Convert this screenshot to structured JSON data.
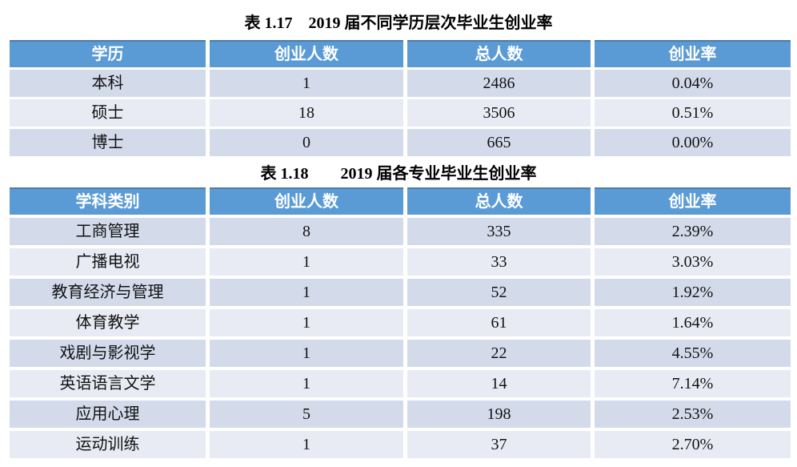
{
  "page": {
    "background_color": "#FFFFFF",
    "text_color": "#111111"
  },
  "colors": {
    "header_bg": "#5B9BD5",
    "header_text": "#FFFFFF",
    "row_band_dark": "#D3DBEB",
    "row_band_light": "#E9EBF4"
  },
  "table1": {
    "title": "表 1.17　2019 届不同学历层次毕业生创业率",
    "headers": [
      "学历",
      "创业人数",
      "总人数",
      "创业率"
    ],
    "rows": [
      [
        "本科",
        "1",
        "2486",
        "0.04%"
      ],
      [
        "硕士",
        "18",
        "3506",
        "0.51%"
      ],
      [
        "博士",
        "0",
        "665",
        "0.00%"
      ]
    ]
  },
  "table2": {
    "title": "表 1.18　　2019 届各专业毕业生创业率",
    "headers": [
      "学科类别",
      "创业人数",
      "总人数",
      "创业率"
    ],
    "rows": [
      [
        "工商管理",
        "8",
        "335",
        "2.39%"
      ],
      [
        "广播电视",
        "1",
        "33",
        "3.03%"
      ],
      [
        "教育经济与管理",
        "1",
        "52",
        "1.92%"
      ],
      [
        "体育教学",
        "1",
        "61",
        "1.64%"
      ],
      [
        "戏剧与影视学",
        "1",
        "22",
        "4.55%"
      ],
      [
        "英语语言文学",
        "1",
        "14",
        "7.14%"
      ],
      [
        "应用心理",
        "5",
        "198",
        "2.53%"
      ],
      [
        "运动训练",
        "1",
        "37",
        "2.70%"
      ]
    ]
  }
}
